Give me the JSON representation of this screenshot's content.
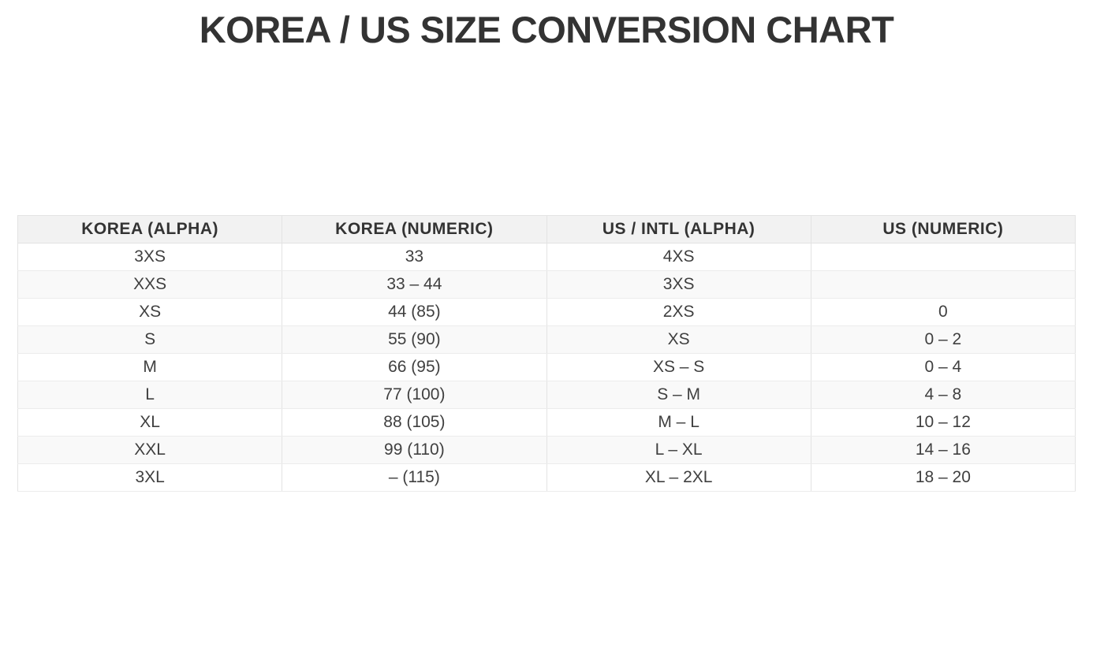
{
  "page": {
    "title": "KOREA / US SIZE CONVERSION CHART"
  },
  "chart_data": {
    "type": "table",
    "title": "KOREA / US SIZE CONVERSION CHART",
    "columns": [
      "KOREA (ALPHA)",
      "KOREA (NUMERIC)",
      "US / INTL (ALPHA)",
      "US (NUMERIC)"
    ],
    "rows": [
      [
        "3XS",
        "33",
        "4XS",
        ""
      ],
      [
        "XXS",
        "33 – 44",
        "3XS",
        ""
      ],
      [
        "XS",
        "44 (85)",
        "2XS",
        "0"
      ],
      [
        "S",
        "55 (90)",
        "XS",
        "0 – 2"
      ],
      [
        "M",
        "66 (95)",
        "XS – S",
        "0 – 4"
      ],
      [
        "L",
        "77 (100)",
        "S – M",
        "4 – 8"
      ],
      [
        "XL",
        "88 (105)",
        "M – L",
        "10 – 12"
      ],
      [
        "XXL",
        "99 (110)",
        "L – XL",
        "14 – 16"
      ],
      [
        "3XL",
        "– (115)",
        "XL – 2XL",
        "18 – 20"
      ]
    ],
    "layout": {
      "header_row": true,
      "zebra_striping": true,
      "column_count": 4,
      "row_count": 9
    }
  },
  "colors": {
    "page_bg": "#ffffff",
    "title_text": "#333333",
    "header_bg": "#f2f2f2",
    "header_text": "#333333",
    "cell_text": "#404040",
    "row_alt_bg": "#f9f9f9",
    "border": "#e3e3e3"
  }
}
